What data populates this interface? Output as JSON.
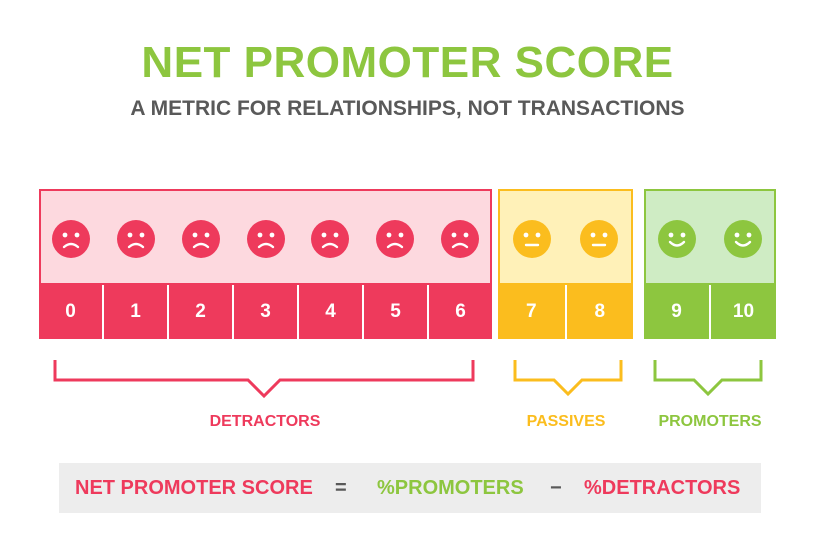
{
  "title": "NET PROMOTER SCORE",
  "subtitle": "A METRIC FOR RELATIONSHIPS, NOT TRANSACTIONS",
  "colors": {
    "detractor": "#ee3a5c",
    "detractor_bg": "#fdd9df",
    "passive": "#fbbd1e",
    "passive_bg": "#fff1b8",
    "promoter": "#8dc63f",
    "promoter_bg": "#cfecc4",
    "title": "#8dc63f",
    "subtitle": "#595959"
  },
  "groups": [
    {
      "label": "DETRACTORS",
      "face": "sad-face-icon",
      "scores": [
        "0",
        "1",
        "2",
        "3",
        "4",
        "5",
        "6"
      ]
    },
    {
      "label": "PASSIVES",
      "face": "neutral-face-icon",
      "scores": [
        "7",
        "8"
      ]
    },
    {
      "label": "PROMOTERS",
      "face": "happy-face-icon",
      "scores": [
        "9",
        "10"
      ]
    }
  ],
  "formula": {
    "lhs": "NET PROMOTER SCORE",
    "equals": "=",
    "promoters": "%PROMOTERS",
    "minus": "−",
    "detractors": "%DETRACTORS"
  }
}
